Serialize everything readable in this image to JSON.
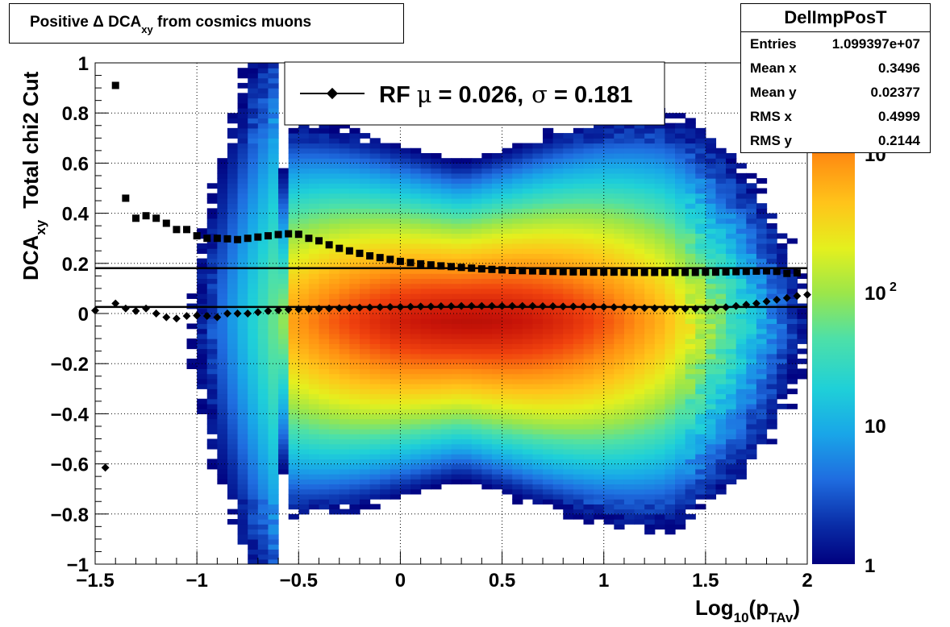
{
  "title": {
    "prefix": "Positive",
    "delta": "Δ",
    "main": "DCA",
    "sub": "xy",
    "suffix": "from cosmics muons"
  },
  "stats": {
    "name": "DelImpPosT",
    "rows": [
      {
        "label": "Entries",
        "value": "1.099397e+07"
      },
      {
        "label": "Mean x",
        "value": "0.3496"
      },
      {
        "label": "Mean y",
        "value": "0.02377"
      },
      {
        "label": "RMS x",
        "value": "0.4999"
      },
      {
        "label": "RMS y",
        "value": "0.2144"
      }
    ]
  },
  "legend": {
    "label": "RF",
    "mu_symbol": "μ",
    "mu_text": "=  0.026,",
    "sigma_symbol": "σ",
    "sigma_text": "=   0.181"
  },
  "axes": {
    "x_main": "Log",
    "x_sub1": "10",
    "x_mid": "(p",
    "x_sub2": "TAv",
    "x_end": ")",
    "y_main": "DCA",
    "y_sub": "xy",
    "y_extra": "Total chi2 Cut",
    "x_ticks": [
      "−1.5",
      "−1",
      "−0.5",
      "0",
      "0.5",
      "1",
      "1.5",
      "2"
    ],
    "y_ticks": [
      "−1",
      "−0.8",
      "−0.6",
      "−0.4",
      "−0.2",
      "0",
      "0.2",
      "0.4",
      "0.6",
      "0.8",
      "1"
    ],
    "z_ticks": [
      {
        "text": "1",
        "exp": ""
      },
      {
        "text": "10",
        "exp": ""
      },
      {
        "text": "10",
        "exp": "2"
      },
      {
        "text": "10",
        "exp": ""
      }
    ]
  },
  "chart_data": {
    "type": "heatmap",
    "title": "Positive Δ DCA_xy from cosmics muons",
    "xlabel": "Log10(p_TAv)",
    "ylabel": "DCA_xy  Total chi2 Cut",
    "xlim": [
      -1.5,
      2.0
    ],
    "ylim": [
      -1.0,
      1.0
    ],
    "zscale": "log",
    "zlim": [
      1,
      1000
    ],
    "grid": true,
    "colormap": [
      "#00007f",
      "#0a2ea8",
      "#1f6de0",
      "#19a6e8",
      "#1fd0d8",
      "#4de0a8",
      "#9be64a",
      "#e4f01e",
      "#ffc41a",
      "#ff8f12",
      "#f0420e",
      "#c81408",
      "#7a0000"
    ],
    "sigma_series": {
      "name": "RF σ",
      "marker": "square",
      "x": [
        -1.4,
        -1.35,
        -1.3,
        -1.25,
        -1.2,
        -1.15,
        -1.1,
        -1.05,
        -1.0,
        -0.95,
        -0.9,
        -0.85,
        -0.8,
        -0.75,
        -0.7,
        -0.65,
        -0.6,
        -0.55,
        -0.5,
        -0.45,
        -0.4,
        -0.35,
        -0.3,
        -0.25,
        -0.2,
        -0.15,
        -0.1,
        -0.05,
        0.0,
        0.05,
        0.1,
        0.15,
        0.2,
        0.25,
        0.3,
        0.35,
        0.4,
        0.45,
        0.5,
        0.55,
        0.6,
        0.65,
        0.7,
        0.75,
        0.8,
        0.85,
        0.9,
        0.95,
        1.0,
        1.05,
        1.1,
        1.15,
        1.2,
        1.25,
        1.3,
        1.35,
        1.4,
        1.45,
        1.5,
        1.55,
        1.6,
        1.65,
        1.7,
        1.75,
        1.8,
        1.85,
        1.9,
        1.95
      ],
      "y": [
        0.91,
        0.46,
        0.38,
        0.39,
        0.38,
        0.36,
        0.335,
        0.335,
        0.31,
        0.3,
        0.3,
        0.298,
        0.295,
        0.3,
        0.305,
        0.31,
        0.315,
        0.318,
        0.316,
        0.3,
        0.29,
        0.274,
        0.26,
        0.25,
        0.24,
        0.23,
        0.223,
        0.216,
        0.208,
        0.203,
        0.198,
        0.194,
        0.19,
        0.187,
        0.184,
        0.181,
        0.178,
        0.176,
        0.174,
        0.172,
        0.171,
        0.17,
        0.169,
        0.168,
        0.167,
        0.166,
        0.166,
        0.165,
        0.165,
        0.165,
        0.165,
        0.164,
        0.164,
        0.164,
        0.164,
        0.164,
        0.164,
        0.164,
        0.165,
        0.165,
        0.166,
        0.167,
        0.168,
        0.169,
        0.17,
        0.168,
        0.16,
        0.162
      ]
    },
    "mean_series": {
      "name": "RF μ",
      "marker": "diamond",
      "x": [
        -1.5,
        -1.45,
        -1.4,
        -1.35,
        -1.3,
        -1.25,
        -1.2,
        -1.15,
        -1.1,
        -1.05,
        -1.0,
        -0.95,
        -0.9,
        -0.85,
        -0.8,
        -0.75,
        -0.7,
        -0.65,
        -0.6,
        -0.55,
        -0.5,
        -0.45,
        -0.4,
        -0.35,
        -0.3,
        -0.25,
        -0.2,
        -0.15,
        -0.1,
        -0.05,
        0.0,
        0.05,
        0.1,
        0.15,
        0.2,
        0.25,
        0.3,
        0.35,
        0.4,
        0.45,
        0.5,
        0.55,
        0.6,
        0.65,
        0.7,
        0.75,
        0.8,
        0.85,
        0.9,
        0.95,
        1.0,
        1.05,
        1.1,
        1.15,
        1.2,
        1.25,
        1.3,
        1.35,
        1.4,
        1.45,
        1.5,
        1.55,
        1.6,
        1.65,
        1.7,
        1.75,
        1.8,
        1.85,
        1.9,
        1.95,
        2.0
      ],
      "y": [
        0.012,
        -0.615,
        0.04,
        0.02,
        0.01,
        0.02,
        0.0,
        -0.015,
        -0.02,
        -0.01,
        -0.008,
        -0.01,
        -0.015,
        0.0,
        0.0,
        0.0,
        0.005,
        0.01,
        0.013,
        0.016,
        0.017,
        0.018,
        0.019,
        0.02,
        0.021,
        0.022,
        0.023,
        0.024,
        0.025,
        0.026,
        0.026,
        0.027,
        0.028,
        0.028,
        0.029,
        0.029,
        0.03,
        0.03,
        0.03,
        0.03,
        0.03,
        0.03,
        0.03,
        0.03,
        0.029,
        0.029,
        0.028,
        0.028,
        0.027,
        0.027,
        0.026,
        0.025,
        0.024,
        0.023,
        0.022,
        0.021,
        0.02,
        0.02,
        0.019,
        0.019,
        0.02,
        0.022,
        0.025,
        0.03,
        0.035,
        0.04,
        0.048,
        0.055,
        0.062,
        0.07,
        0.075
      ]
    },
    "fit_lines": [
      {
        "name": "RF μ",
        "value": 0.026
      },
      {
        "name": "RF σ",
        "value": 0.181
      }
    ]
  }
}
